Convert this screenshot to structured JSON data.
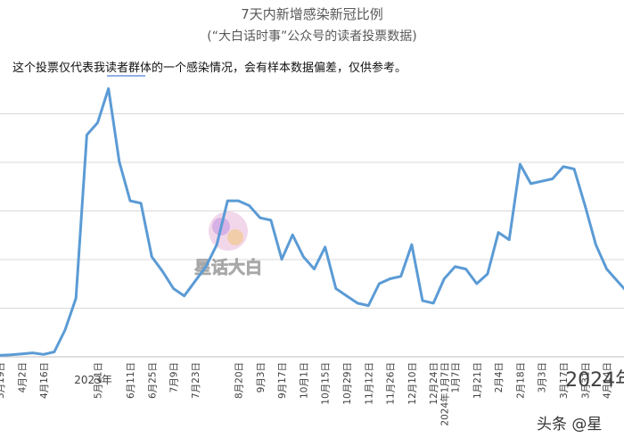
{
  "chart_data": {
    "type": "line",
    "title": "7天内新增感染新冠比例",
    "subtitle": "(“大白话时事”公众号的读者投票数据)",
    "annotation": "这个投票仅代表我读者群体的一个感染情况，会有样本数据偏差，仅供参考。",
    "xlabel": "",
    "ylabel": "",
    "year_labels": [
      {
        "label": "2023年",
        "at": "5月21日"
      },
      {
        "label": "2024年1月7日",
        "at": "1月7日"
      },
      {
        "label": "2024年",
        "at": "3月24日"
      }
    ],
    "x_ticks": [
      "3月19日",
      "4月2日",
      "4月16日",
      "5月1日",
      "5月21日",
      "6月11日",
      "6月25日",
      "7月9日",
      "7月23日",
      "8月7日",
      "8月20日",
      "9月3日",
      "9月17日",
      "10月1日",
      "10月15日",
      "10月29日",
      "11月12日",
      "11月26日",
      "12月10日",
      "12月24日",
      "1月7日",
      "1月21日",
      "2月4日",
      "2月18日",
      "3月3日",
      "3月17日",
      "3月31日",
      "4月14日"
    ],
    "grid": true,
    "series": [
      {
        "color": "#5b9bd5",
        "x": [
          "3月12日",
          "3月19日",
          "3月26日",
          "4月2日",
          "4月9日",
          "4月16日",
          "4月23日",
          "4月30日",
          "5月7日",
          "5月14日",
          "5月21日",
          "5月28日",
          "6月4日",
          "6月11日",
          "6月18日",
          "6月25日",
          "7月2日",
          "7月9日",
          "7月16日",
          "7月23日",
          "7月30日",
          "8月6日",
          "8月13日",
          "8月20日",
          "8月27日",
          "9月3日",
          "9月10日",
          "9月17日",
          "9月24日",
          "10月1日",
          "10月8日",
          "10月15日",
          "10月22日",
          "10月29日",
          "11月5日",
          "11月12日",
          "11月19日",
          "11月26日",
          "12月3日",
          "12月10日",
          "12月17日",
          "12月24日",
          "12月31日",
          "1月7日",
          "1月14日",
          "1月21日",
          "1月28日",
          "2月4日",
          "2月11日",
          "2月18日",
          "2月25日",
          "3月3日",
          "3月10日",
          "3月17日",
          "3月24日",
          "3月31日",
          "4月7日",
          "4月14日",
          "4月21日",
          "4月28日"
        ],
        "values": [
          0.5,
          0.3,
          0.4,
          0.6,
          0.8,
          0.5,
          1.0,
          5.5,
          12.0,
          45.5,
          48.0,
          55.0,
          40.0,
          32.0,
          31.5,
          20.5,
          17.5,
          14.0,
          12.5,
          15.5,
          18.5,
          23.0,
          32.0,
          32.0,
          31.0,
          28.5,
          28.0,
          20.0,
          25.0,
          20.5,
          18.0,
          22.5,
          14.0,
          12.5,
          11.0,
          10.5,
          15.0,
          16.0,
          16.5,
          23.0,
          11.5,
          11.0,
          16.0,
          18.5,
          18.0,
          15.0,
          17.0,
          25.5,
          24.0,
          39.5,
          35.5,
          36.0,
          36.5,
          39.0,
          38.5,
          31.0,
          23.0,
          18.0,
          15.5,
          13.0
        ]
      }
    ],
    "ylim": [
      0,
      60
    ]
  },
  "watermarks": {
    "center": "星话大白",
    "corner": "头条 @星"
  }
}
